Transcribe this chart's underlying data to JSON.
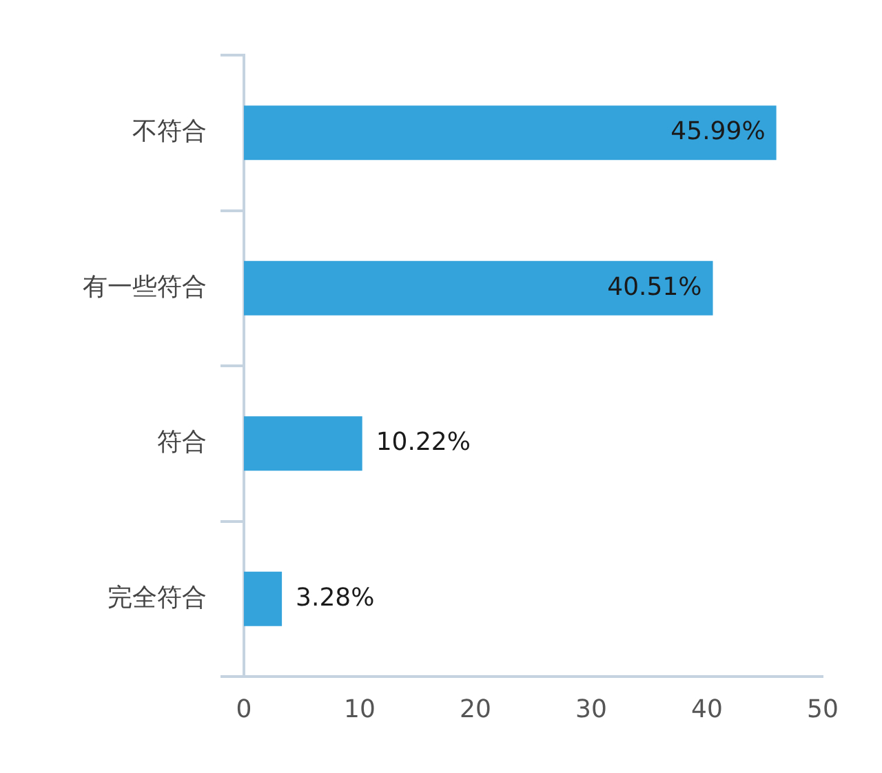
{
  "chart_data": {
    "type": "bar",
    "orientation": "horizontal",
    "categories": [
      "不符合",
      "有一些符合",
      "符合",
      "完全符合"
    ],
    "values": [
      45.99,
      40.51,
      10.22,
      3.28
    ],
    "value_labels": [
      "45.99%",
      "40.51%",
      "10.22%",
      "3.28%"
    ],
    "color": "#34a3db",
    "xlim": [
      0,
      50
    ],
    "xticks": [
      0,
      10,
      20,
      30,
      40,
      50
    ],
    "grid": false
  }
}
